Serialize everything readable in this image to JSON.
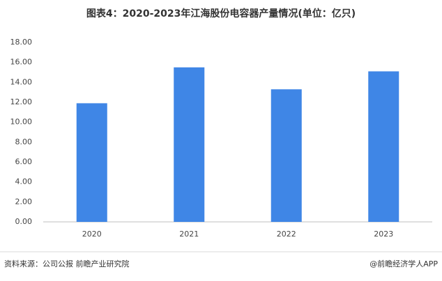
{
  "chart_data": {
    "type": "bar",
    "title": "图表4：2020-2023年江海股份电容器产量情况(单位：亿只)",
    "categories": [
      "2020",
      "2021",
      "2022",
      "2023"
    ],
    "values": [
      11.9,
      15.5,
      13.3,
      15.1
    ],
    "color": "#3f86e6",
    "ylim": [
      0,
      18
    ],
    "yticks": [
      {
        "value": 0,
        "label": "0.00"
      },
      {
        "value": 2,
        "label": "2.00"
      },
      {
        "value": 4,
        "label": "4.00"
      },
      {
        "value": 6,
        "label": "6.00"
      },
      {
        "value": 8,
        "label": "8.00"
      },
      {
        "value": 10,
        "label": "10.00"
      },
      {
        "value": 12,
        "label": "12.00"
      },
      {
        "value": 14,
        "label": "14.00"
      },
      {
        "value": 16,
        "label": "16.00"
      },
      {
        "value": 18,
        "label": "18.00"
      }
    ],
    "grid": false
  },
  "footer": {
    "source": "资料来源：公司公报 前瞻产业研究院",
    "credit": "@前瞻经济学人APP"
  }
}
